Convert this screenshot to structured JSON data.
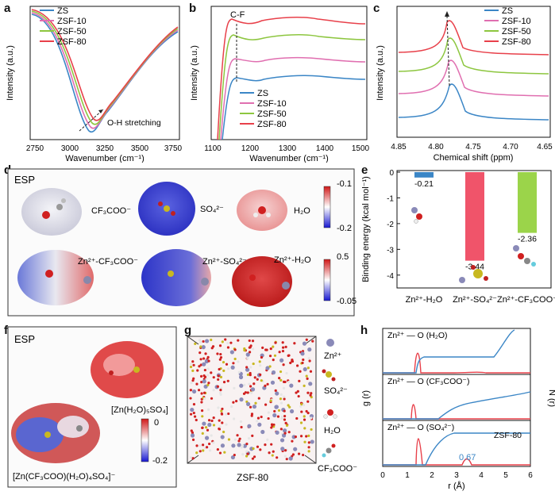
{
  "panel_letters": {
    "a": "a",
    "b": "b",
    "c": "c",
    "d": "d",
    "e": "e",
    "f": "f",
    "g": "g",
    "h": "h"
  },
  "colors": {
    "ZS": "#3b86c6",
    "ZSF-10": "#e06fb0",
    "ZSF-50": "#8dc63f",
    "ZSF-80": "#e8404a"
  },
  "legend": [
    "ZS",
    "ZSF-10",
    "ZSF-50",
    "ZSF-80"
  ],
  "panel_a": {
    "ylabel": "Intensity (a.u.)",
    "xlabel": "Wavenumber (cm⁻¹)",
    "annotation": "O-H stretching",
    "xticks": [
      "2750",
      "3000",
      "3250",
      "3500",
      "3750"
    ]
  },
  "panel_b": {
    "ylabel": "Intensity (a.u.)",
    "xlabel": "Wavenumber (cm⁻¹)",
    "annotation": "C-F",
    "xticks": [
      "1100",
      "1200",
      "1300",
      "1400",
      "1500"
    ]
  },
  "panel_c": {
    "ylabel": "Intensity (a.u.)",
    "xlabel": "Chemical shift (ppm)",
    "xticks": [
      "4.85",
      "4.80",
      "4.75",
      "4.70",
      "4.65"
    ]
  },
  "panel_d": {
    "title": "ESP",
    "labels": [
      "CF₃COO⁻",
      "SO₄²⁻",
      "H₂O",
      "Zn²⁺-CF₃COO⁻",
      "Zn²⁺-SO₄²⁻",
      "Zn²⁺-H₂O"
    ],
    "scale_top": {
      "max": "-0.1",
      "min": "-0.2"
    },
    "scale_bottom": {
      "max": "0.5",
      "min": "-0.05"
    }
  },
  "panel_f": {
    "title": "ESP",
    "labels": [
      "[Zn(H₂O)₅SO₄]",
      "[Zn(CF₃COO)(H₂O)₄SO₄]⁻"
    ],
    "scale": {
      "max": "0",
      "min": "-0.2"
    }
  },
  "panel_g": {
    "caption": "ZSF-80",
    "legend": [
      "Zn²⁺",
      "SO₄²⁻",
      "H₂O",
      "CF₃COO⁻"
    ]
  },
  "panel_h": {
    "xlabel": "r (Å)",
    "ylabel_left": "g (r)",
    "ylabel_right": "N (r)",
    "rows": [
      "Zn²⁺ — O (H₂O)",
      "Zn²⁺ — O (CF₃COO⁻)",
      "Zn²⁺ — O (SO₄²⁻)"
    ],
    "sample": "ZSF-80",
    "annotation": "0.67",
    "xticks": [
      "0",
      "1",
      "2",
      "3",
      "4",
      "5",
      "6"
    ]
  },
  "chart_data": {
    "type": "bar",
    "categories": [
      "Zn²⁺-H₂O",
      "Zn²⁺-SO₄²⁻",
      "Zn²⁺-CF₃COO⁻"
    ],
    "values": [
      -0.21,
      -3.44,
      -2.36
    ],
    "value_labels": [
      "-0.21",
      "-3.44",
      "-2.36"
    ],
    "ylabel": "Binding energy (kcal mol⁻¹)",
    "ylim": [
      -4.5,
      0
    ],
    "yticks": [
      "0",
      "-1",
      "-2",
      "-3",
      "-4"
    ],
    "bar_colors": [
      "#3b86c6",
      "#f0546a",
      "#9bd44a"
    ]
  }
}
